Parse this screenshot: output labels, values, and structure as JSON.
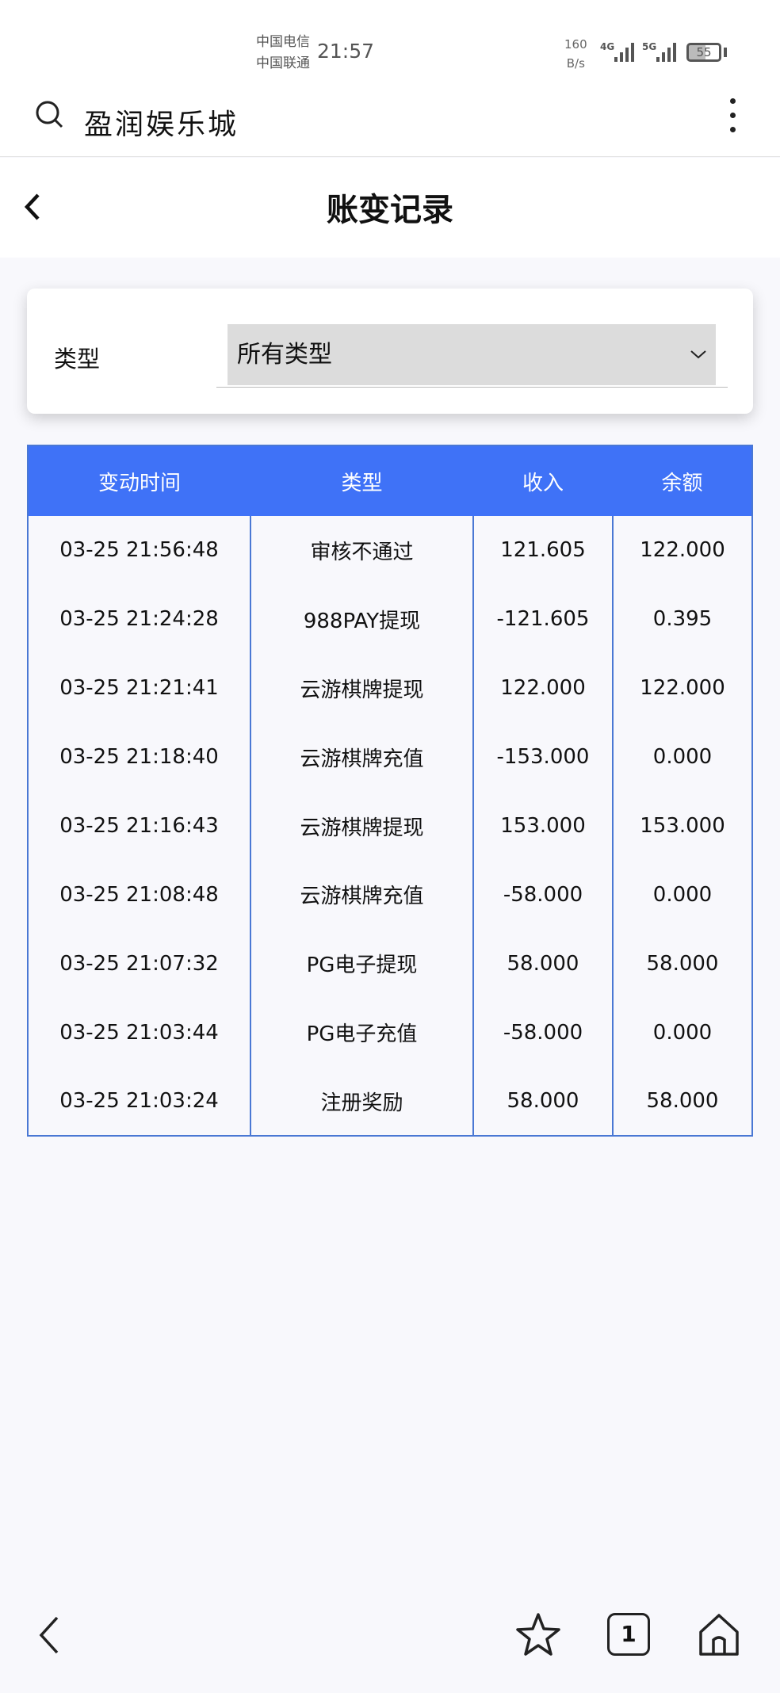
{
  "status_bar": {
    "carrier1": "中国电信",
    "carrier2": "中国联通",
    "time": "21:57",
    "speed_value": "160",
    "speed_unit": "B/s",
    "net1": "4G",
    "net2": "5G",
    "battery": "55"
  },
  "browser": {
    "site_title": "盈润娱乐城"
  },
  "header": {
    "title": "账变记录"
  },
  "filter": {
    "label": "类型",
    "selected": "所有类型"
  },
  "table": {
    "headers": [
      "变动时间",
      "类型",
      "收入",
      "余额"
    ],
    "rows": [
      [
        "03-25 21:56:48",
        "审核不通过",
        "121.605",
        "122.000"
      ],
      [
        "03-25 21:24:28",
        "988PAY提现",
        "-121.605",
        "0.395"
      ],
      [
        "03-25 21:21:41",
        "云游棋牌提现",
        "122.000",
        "122.000"
      ],
      [
        "03-25 21:18:40",
        "云游棋牌充值",
        "-153.000",
        "0.000"
      ],
      [
        "03-25 21:16:43",
        "云游棋牌提现",
        "153.000",
        "153.000"
      ],
      [
        "03-25 21:08:48",
        "云游棋牌充值",
        "-58.000",
        "0.000"
      ],
      [
        "03-25 21:07:32",
        "PG电子提现",
        "58.000",
        "58.000"
      ],
      [
        "03-25 21:03:44",
        "PG电子充值",
        "-58.000",
        "0.000"
      ],
      [
        "03-25 21:03:24",
        "注册奖励",
        "58.000",
        "58.000"
      ]
    ]
  },
  "bottom_nav": {
    "tab_count": "1"
  },
  "colors": {
    "header_blue": "#3f72f7",
    "border_blue": "#4a78d4"
  }
}
